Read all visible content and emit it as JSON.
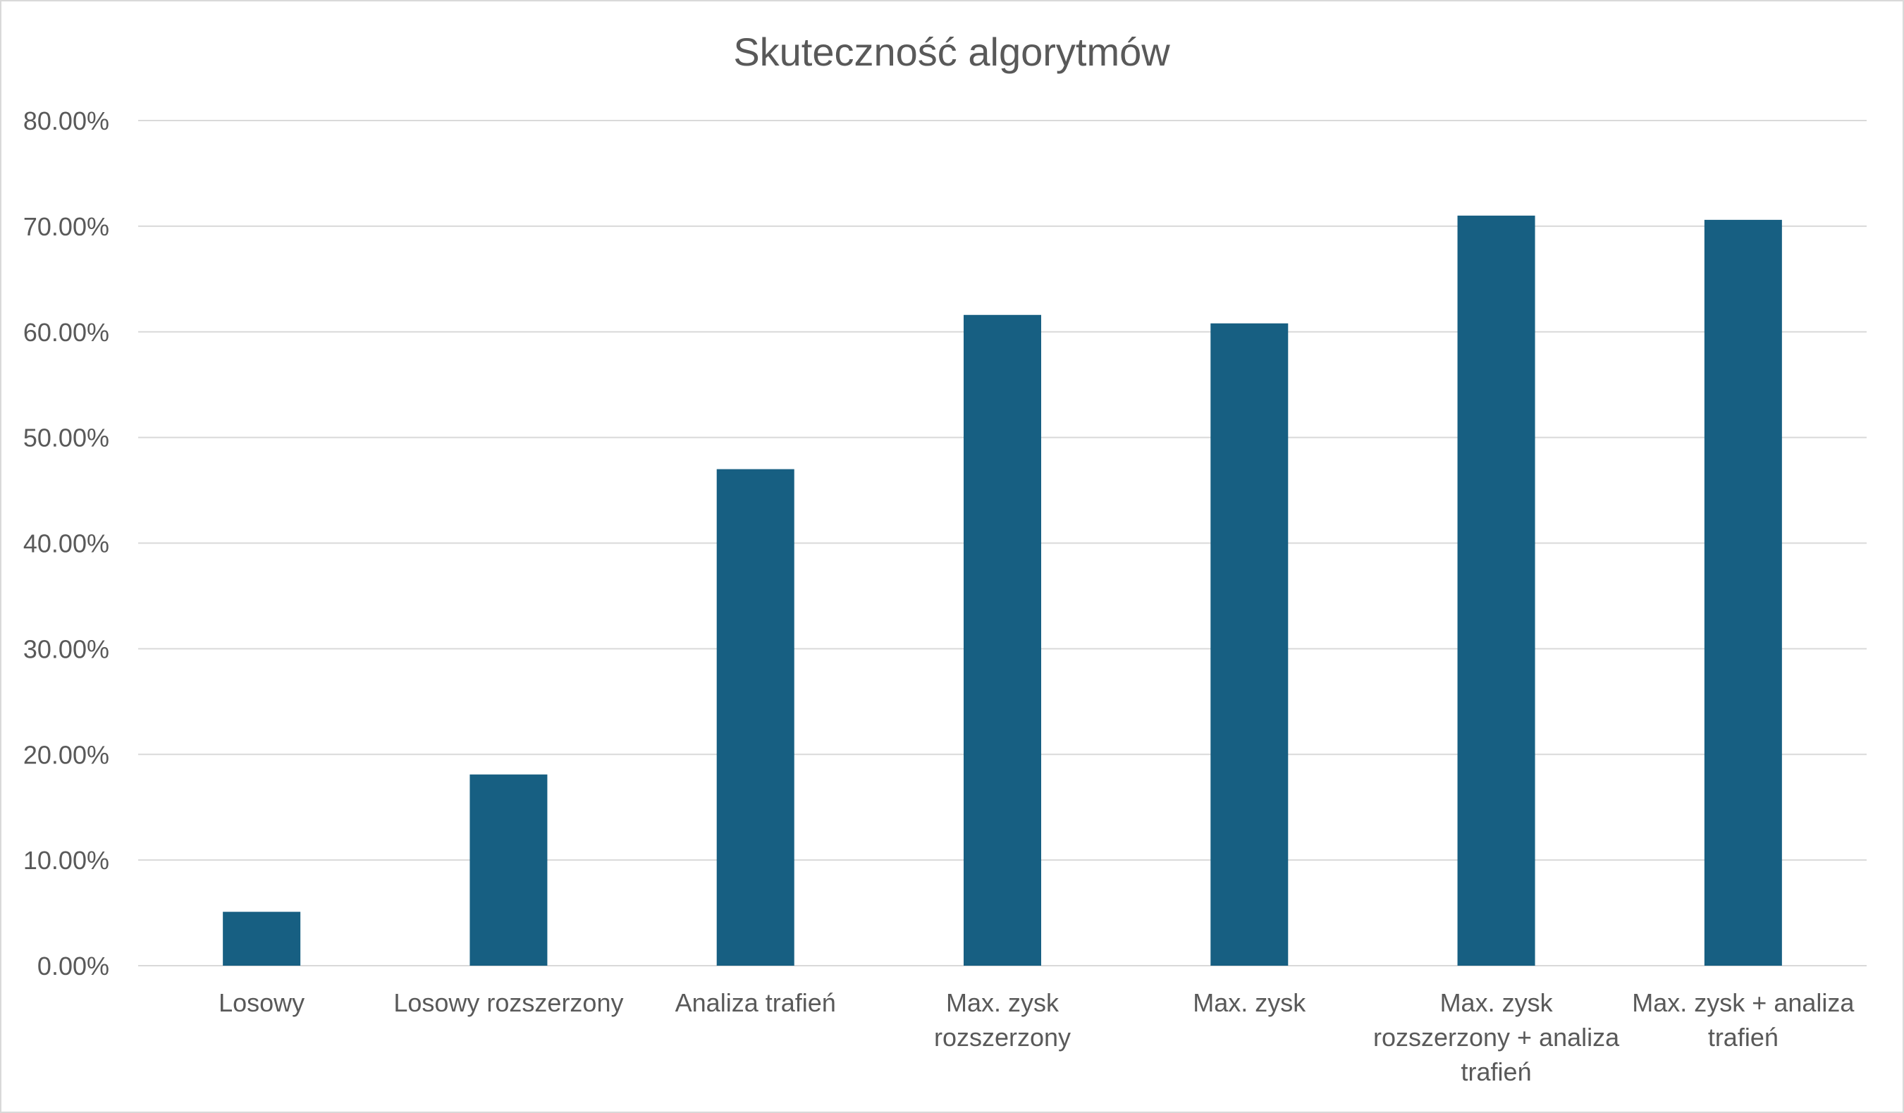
{
  "chart_data": {
    "type": "bar",
    "title": "Skuteczność algorytmów",
    "xlabel": "",
    "ylabel": "",
    "ylim": [
      0,
      0.8
    ],
    "ytick_step": 0.1,
    "ytick_labels": [
      "0.00%",
      "10.00%",
      "20.00%",
      "30.00%",
      "40.00%",
      "50.00%",
      "60.00%",
      "70.00%",
      "80.00%"
    ],
    "categories": [
      [
        "Losowy"
      ],
      [
        "Losowy rozszerzony"
      ],
      [
        "Analiza trafień"
      ],
      [
        "Max. zysk",
        "rozszerzony"
      ],
      [
        "Max. zysk"
      ],
      [
        "Max. zysk",
        "rozszerzony + analiza",
        "trafień"
      ],
      [
        "Max. zysk + analiza",
        "trafień"
      ]
    ],
    "values": [
      0.051,
      0.181,
      0.47,
      0.616,
      0.608,
      0.71,
      0.706
    ],
    "bar_color": "#175f82",
    "grid": true,
    "legend": "none"
  }
}
